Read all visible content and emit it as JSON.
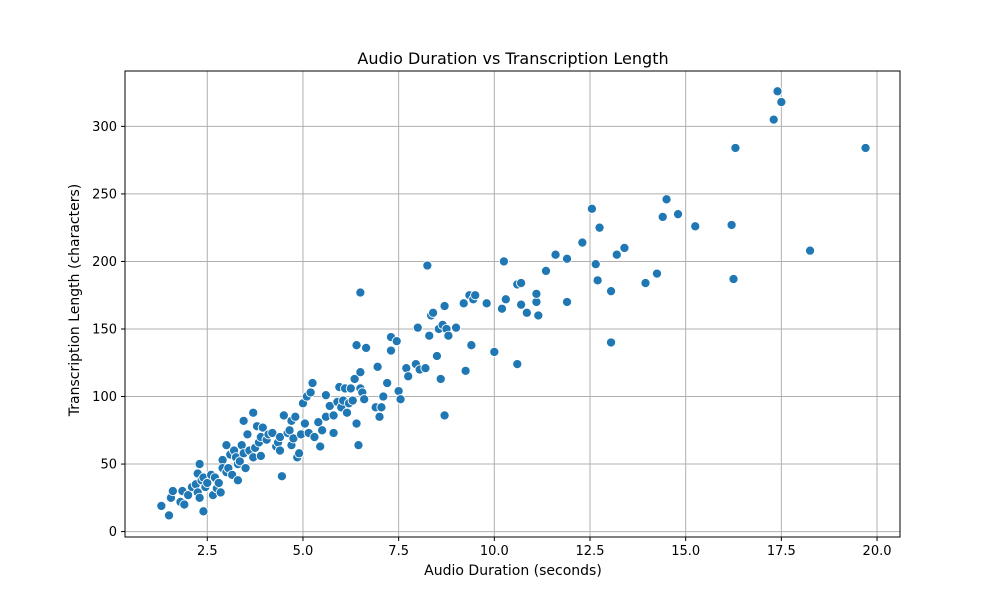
{
  "chart_data": {
    "type": "scatter",
    "title": "Audio Duration vs Transcription Length",
    "xlabel": "Audio Duration (seconds)",
    "ylabel": "Transcription Length (characters)",
    "xlim": [
      0.35,
      20.6
    ],
    "ylim": [
      -4,
      341
    ],
    "xticks": [
      2.5,
      5.0,
      7.5,
      10.0,
      12.5,
      15.0,
      17.5,
      20.0
    ],
    "xtick_labels": [
      "2.5",
      "5.0",
      "7.5",
      "10.0",
      "12.5",
      "15.0",
      "17.5",
      "20.0"
    ],
    "yticks": [
      0,
      50,
      100,
      150,
      200,
      250,
      300
    ],
    "ytick_labels": [
      "0",
      "50",
      "100",
      "150",
      "200",
      "250",
      "300"
    ],
    "grid": true,
    "marker_color": "#1f77b4",
    "marker_edge_color": "#ffffff",
    "points": [
      [
        1.3,
        19
      ],
      [
        1.5,
        12
      ],
      [
        1.55,
        25
      ],
      [
        1.6,
        30
      ],
      [
        1.8,
        22
      ],
      [
        1.85,
        30
      ],
      [
        1.9,
        20
      ],
      [
        2.0,
        27
      ],
      [
        2.1,
        33
      ],
      [
        2.2,
        35
      ],
      [
        2.25,
        29
      ],
      [
        2.25,
        43
      ],
      [
        2.3,
        50
      ],
      [
        2.3,
        25
      ],
      [
        2.35,
        38
      ],
      [
        2.4,
        15
      ],
      [
        2.4,
        40
      ],
      [
        2.45,
        33
      ],
      [
        2.5,
        36
      ],
      [
        2.6,
        42
      ],
      [
        2.65,
        27
      ],
      [
        2.7,
        40
      ],
      [
        2.75,
        32
      ],
      [
        2.8,
        36
      ],
      [
        2.85,
        29
      ],
      [
        2.9,
        53
      ],
      [
        2.9,
        47
      ],
      [
        3.0,
        64
      ],
      [
        3.0,
        44
      ],
      [
        3.05,
        47
      ],
      [
        3.1,
        57
      ],
      [
        3.15,
        42
      ],
      [
        3.2,
        60
      ],
      [
        3.25,
        55
      ],
      [
        3.3,
        50
      ],
      [
        3.3,
        38
      ],
      [
        3.35,
        52
      ],
      [
        3.4,
        64
      ],
      [
        3.45,
        58
      ],
      [
        3.45,
        82
      ],
      [
        3.5,
        47
      ],
      [
        3.55,
        72
      ],
      [
        3.6,
        60
      ],
      [
        3.7,
        55
      ],
      [
        3.7,
        88
      ],
      [
        3.75,
        62
      ],
      [
        3.8,
        78
      ],
      [
        3.85,
        66
      ],
      [
        3.9,
        56
      ],
      [
        3.9,
        70
      ],
      [
        3.95,
        77
      ],
      [
        4.05,
        68
      ],
      [
        4.1,
        72
      ],
      [
        4.2,
        73
      ],
      [
        4.3,
        63
      ],
      [
        4.35,
        66
      ],
      [
        4.4,
        70
      ],
      [
        4.4,
        60
      ],
      [
        4.45,
        41
      ],
      [
        4.5,
        86
      ],
      [
        4.6,
        73
      ],
      [
        4.65,
        75
      ],
      [
        4.7,
        64
      ],
      [
        4.7,
        82
      ],
      [
        4.75,
        69
      ],
      [
        4.8,
        85
      ],
      [
        4.85,
        55
      ],
      [
        4.9,
        58
      ],
      [
        4.95,
        72
      ],
      [
        5.0,
        95
      ],
      [
        5.05,
        80
      ],
      [
        5.1,
        100
      ],
      [
        5.15,
        73
      ],
      [
        5.2,
        103
      ],
      [
        5.25,
        110
      ],
      [
        5.3,
        70
      ],
      [
        5.4,
        81
      ],
      [
        5.45,
        63
      ],
      [
        5.5,
        75
      ],
      [
        5.6,
        85
      ],
      [
        5.6,
        101
      ],
      [
        5.7,
        93
      ],
      [
        5.8,
        73
      ],
      [
        5.8,
        86
      ],
      [
        5.9,
        96
      ],
      [
        5.95,
        107
      ],
      [
        6.0,
        92
      ],
      [
        6.05,
        97
      ],
      [
        6.1,
        106
      ],
      [
        6.15,
        88
      ],
      [
        6.2,
        95
      ],
      [
        6.25,
        106
      ],
      [
        6.3,
        97
      ],
      [
        6.35,
        113
      ],
      [
        6.4,
        80
      ],
      [
        6.4,
        138
      ],
      [
        6.45,
        64
      ],
      [
        6.5,
        118
      ],
      [
        6.5,
        106
      ],
      [
        6.55,
        103
      ],
      [
        6.6,
        98
      ],
      [
        6.65,
        136
      ],
      [
        6.5,
        177
      ],
      [
        6.9,
        92
      ],
      [
        6.95,
        122
      ],
      [
        7.0,
        85
      ],
      [
        7.05,
        92
      ],
      [
        7.1,
        100
      ],
      [
        7.2,
        110
      ],
      [
        7.3,
        134
      ],
      [
        7.3,
        144
      ],
      [
        7.45,
        141
      ],
      [
        7.5,
        104
      ],
      [
        7.55,
        98
      ],
      [
        7.7,
        121
      ],
      [
        7.75,
        115
      ],
      [
        7.95,
        124
      ],
      [
        8.0,
        151
      ],
      [
        8.05,
        120
      ],
      [
        8.2,
        121
      ],
      [
        8.25,
        197
      ],
      [
        8.3,
        145
      ],
      [
        8.35,
        160
      ],
      [
        8.4,
        162
      ],
      [
        8.5,
        130
      ],
      [
        8.55,
        150
      ],
      [
        8.6,
        113
      ],
      [
        8.65,
        153
      ],
      [
        8.7,
        86
      ],
      [
        8.7,
        167
      ],
      [
        8.75,
        150
      ],
      [
        8.8,
        145
      ],
      [
        9.0,
        151
      ],
      [
        9.2,
        169
      ],
      [
        9.25,
        119
      ],
      [
        9.35,
        175
      ],
      [
        9.4,
        138
      ],
      [
        9.45,
        172
      ],
      [
        9.5,
        175
      ],
      [
        9.8,
        169
      ],
      [
        10.0,
        133
      ],
      [
        10.2,
        165
      ],
      [
        10.25,
        200
      ],
      [
        10.3,
        172
      ],
      [
        10.6,
        124
      ],
      [
        10.6,
        183
      ],
      [
        10.7,
        184
      ],
      [
        10.7,
        168
      ],
      [
        10.85,
        162
      ],
      [
        11.1,
        170
      ],
      [
        11.1,
        176
      ],
      [
        11.15,
        160
      ],
      [
        11.35,
        193
      ],
      [
        11.6,
        205
      ],
      [
        11.9,
        202
      ],
      [
        11.9,
        170
      ],
      [
        12.3,
        214
      ],
      [
        12.55,
        239
      ],
      [
        12.65,
        198
      ],
      [
        12.7,
        186
      ],
      [
        12.75,
        225
      ],
      [
        13.05,
        140
      ],
      [
        13.05,
        178
      ],
      [
        13.2,
        205
      ],
      [
        13.4,
        210
      ],
      [
        13.95,
        184
      ],
      [
        14.25,
        191
      ],
      [
        14.4,
        233
      ],
      [
        14.5,
        246
      ],
      [
        14.8,
        235
      ],
      [
        15.25,
        226
      ],
      [
        16.2,
        227
      ],
      [
        16.25,
        187
      ],
      [
        16.3,
        284
      ],
      [
        17.3,
        305
      ],
      [
        17.4,
        326
      ],
      [
        17.5,
        318
      ],
      [
        18.25,
        208
      ],
      [
        19.7,
        284
      ]
    ]
  }
}
